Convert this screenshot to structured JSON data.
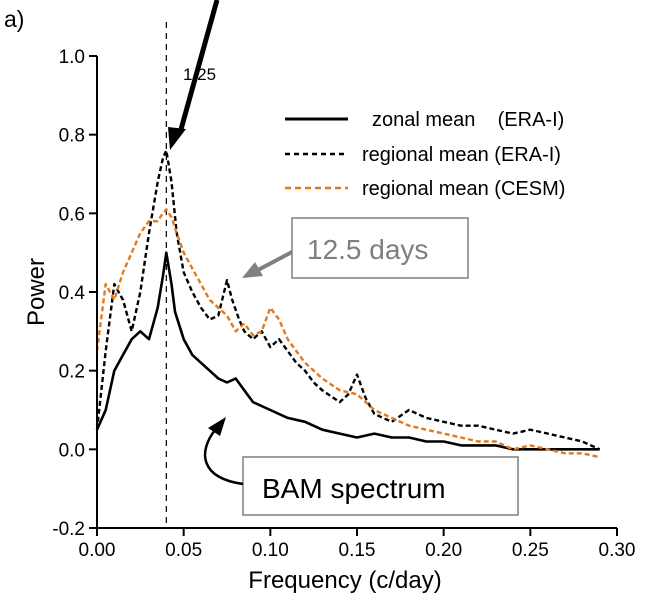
{
  "panel_label": "a)",
  "arrow_label": "1/25",
  "chart_data": {
    "type": "line",
    "xlabel": "Frequency (c/day)",
    "ylabel": "Power",
    "xlim": [
      0.0,
      0.3
    ],
    "ylim": [
      -0.2,
      1.0
    ],
    "xticks": [
      0.0,
      0.05,
      0.1,
      0.15,
      0.2,
      0.25,
      0.3
    ],
    "xtick_labels": [
      "0.00",
      "0.05",
      "0.10",
      "0.15",
      "0.20",
      "0.25",
      "0.30"
    ],
    "yticks": [
      -0.2,
      0.0,
      0.2,
      0.4,
      0.6,
      0.8,
      1.0
    ],
    "ytick_labels": [
      "-0.2",
      "0.0",
      "0.2",
      "0.4",
      "0.6",
      "0.8",
      "1.0"
    ],
    "vline_x": 0.04,
    "legend_position": "top-right",
    "series": [
      {
        "name": "zonal mean    (ERA-I)",
        "color": "#000000",
        "dash": "solid",
        "x": [
          0.0,
          0.005,
          0.01,
          0.015,
          0.02,
          0.025,
          0.03,
          0.035,
          0.038,
          0.04,
          0.043,
          0.045,
          0.05,
          0.055,
          0.06,
          0.065,
          0.07,
          0.075,
          0.08,
          0.085,
          0.09,
          0.1,
          0.11,
          0.12,
          0.13,
          0.14,
          0.15,
          0.16,
          0.17,
          0.18,
          0.19,
          0.2,
          0.21,
          0.22,
          0.23,
          0.24,
          0.25,
          0.26,
          0.27,
          0.28,
          0.29
        ],
        "y": [
          0.05,
          0.1,
          0.2,
          0.24,
          0.28,
          0.3,
          0.28,
          0.36,
          0.44,
          0.5,
          0.42,
          0.35,
          0.28,
          0.24,
          0.22,
          0.2,
          0.18,
          0.17,
          0.18,
          0.15,
          0.12,
          0.1,
          0.08,
          0.07,
          0.05,
          0.04,
          0.03,
          0.04,
          0.03,
          0.03,
          0.02,
          0.02,
          0.01,
          0.01,
          0.01,
          0.0,
          0.0,
          0.0,
          0.0,
          0.0,
          0.0
        ]
      },
      {
        "name": "regional mean (ERA-I)",
        "color": "#000000",
        "dash": "dashed",
        "x": [
          0.0,
          0.005,
          0.01,
          0.015,
          0.02,
          0.025,
          0.03,
          0.035,
          0.038,
          0.04,
          0.043,
          0.046,
          0.05,
          0.055,
          0.06,
          0.065,
          0.07,
          0.075,
          0.078,
          0.082,
          0.085,
          0.09,
          0.095,
          0.1,
          0.105,
          0.11,
          0.115,
          0.12,
          0.125,
          0.13,
          0.14,
          0.145,
          0.15,
          0.155,
          0.16,
          0.17,
          0.18,
          0.19,
          0.2,
          0.21,
          0.22,
          0.23,
          0.24,
          0.25,
          0.26,
          0.27,
          0.28,
          0.29
        ],
        "y": [
          0.05,
          0.25,
          0.42,
          0.38,
          0.3,
          0.4,
          0.55,
          0.68,
          0.74,
          0.76,
          0.68,
          0.55,
          0.45,
          0.4,
          0.36,
          0.33,
          0.34,
          0.43,
          0.38,
          0.33,
          0.3,
          0.28,
          0.3,
          0.26,
          0.28,
          0.25,
          0.22,
          0.2,
          0.17,
          0.15,
          0.12,
          0.14,
          0.19,
          0.13,
          0.09,
          0.07,
          0.1,
          0.08,
          0.07,
          0.06,
          0.06,
          0.05,
          0.04,
          0.05,
          0.04,
          0.03,
          0.02,
          0.0
        ]
      },
      {
        "name": "regional mean (CESM)",
        "color": "#E07A1F",
        "dash": "dashed",
        "x": [
          0.0,
          0.005,
          0.01,
          0.015,
          0.02,
          0.025,
          0.03,
          0.035,
          0.038,
          0.04,
          0.043,
          0.046,
          0.05,
          0.055,
          0.06,
          0.065,
          0.07,
          0.075,
          0.08,
          0.085,
          0.09,
          0.095,
          0.1,
          0.105,
          0.11,
          0.115,
          0.12,
          0.13,
          0.14,
          0.15,
          0.16,
          0.17,
          0.18,
          0.19,
          0.2,
          0.21,
          0.22,
          0.23,
          0.24,
          0.25,
          0.26,
          0.27,
          0.28,
          0.29
        ],
        "y": [
          0.25,
          0.42,
          0.38,
          0.45,
          0.5,
          0.55,
          0.58,
          0.58,
          0.6,
          0.61,
          0.59,
          0.55,
          0.5,
          0.46,
          0.42,
          0.38,
          0.36,
          0.34,
          0.3,
          0.32,
          0.29,
          0.3,
          0.36,
          0.33,
          0.28,
          0.25,
          0.22,
          0.18,
          0.15,
          0.14,
          0.1,
          0.08,
          0.06,
          0.05,
          0.04,
          0.03,
          0.02,
          0.02,
          0.0,
          0.01,
          0.0,
          -0.01,
          -0.01,
          -0.02
        ]
      }
    ],
    "annotations": [
      {
        "text": "12.5 days",
        "boxed": true,
        "color": "#7f7f7f",
        "arrow_color": "#808080",
        "target": [
          0.08,
          0.4
        ]
      },
      {
        "text": "BAM spectrum",
        "boxed": true,
        "color": "#000000",
        "arrow_color": "#000000",
        "target": [
          0.07,
          0.17
        ]
      }
    ]
  }
}
